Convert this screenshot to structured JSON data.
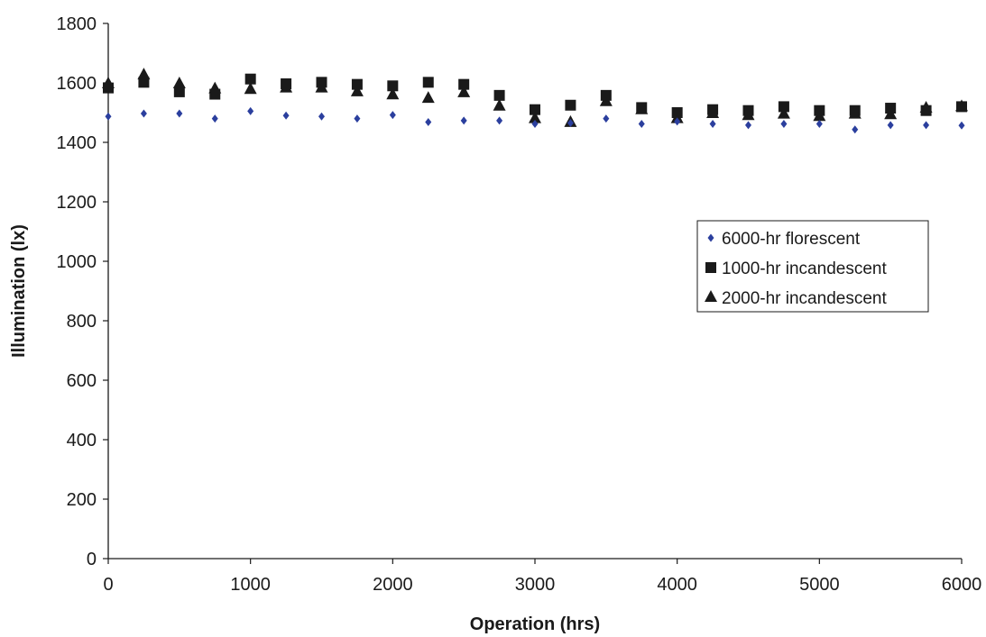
{
  "chart_data": {
    "type": "scatter",
    "xlabel": "Operation (hrs)",
    "ylabel": "Illumination (lx)",
    "xlim": [
      0,
      6000
    ],
    "ylim": [
      0,
      1800
    ],
    "xticks": [
      0,
      1000,
      2000,
      3000,
      4000,
      5000,
      6000
    ],
    "yticks": [
      0,
      200,
      400,
      600,
      800,
      1000,
      1200,
      1400,
      1600,
      1800
    ],
    "grid": false,
    "legend_position": "right",
    "x": [
      0,
      250,
      500,
      750,
      1000,
      1250,
      1500,
      1750,
      2000,
      2250,
      2500,
      2750,
      3000,
      3250,
      3500,
      3750,
      4000,
      4250,
      4500,
      4750,
      5000,
      5250,
      5500,
      5750,
      6000
    ],
    "series": [
      {
        "name": "6000-hr florescent",
        "marker": "diamond",
        "color": "#2b3f9e",
        "values": [
          1487,
          1497,
          1497,
          1480,
          1505,
          1490,
          1487,
          1480,
          1492,
          1468,
          1473,
          1473,
          1462,
          1465,
          1480,
          1462,
          1470,
          1462,
          1458,
          1462,
          1462,
          1443,
          1458,
          1458,
          1457
        ]
      },
      {
        "name": "1000-hr incandescent",
        "marker": "square",
        "color": "#1a1a1a",
        "values": [
          1583,
          1602,
          1570,
          1562,
          1613,
          1597,
          1602,
          1595,
          1590,
          1602,
          1595,
          1558,
          1510,
          1525,
          1558,
          1517,
          1500,
          1510,
          1507,
          1520,
          1507,
          1507,
          1515,
          1507,
          1520
        ]
      },
      {
        "name": "2000-hr incandescent",
        "marker": "triangle",
        "color": "#1a1a1a",
        "values": [
          1597,
          1627,
          1597,
          1580,
          1578,
          1583,
          1583,
          1570,
          1560,
          1548,
          1567,
          1522,
          1480,
          1467,
          1537,
          1510,
          1480,
          1497,
          1490,
          1495,
          1487,
          1495,
          1493,
          1515,
          1520
        ]
      }
    ]
  }
}
